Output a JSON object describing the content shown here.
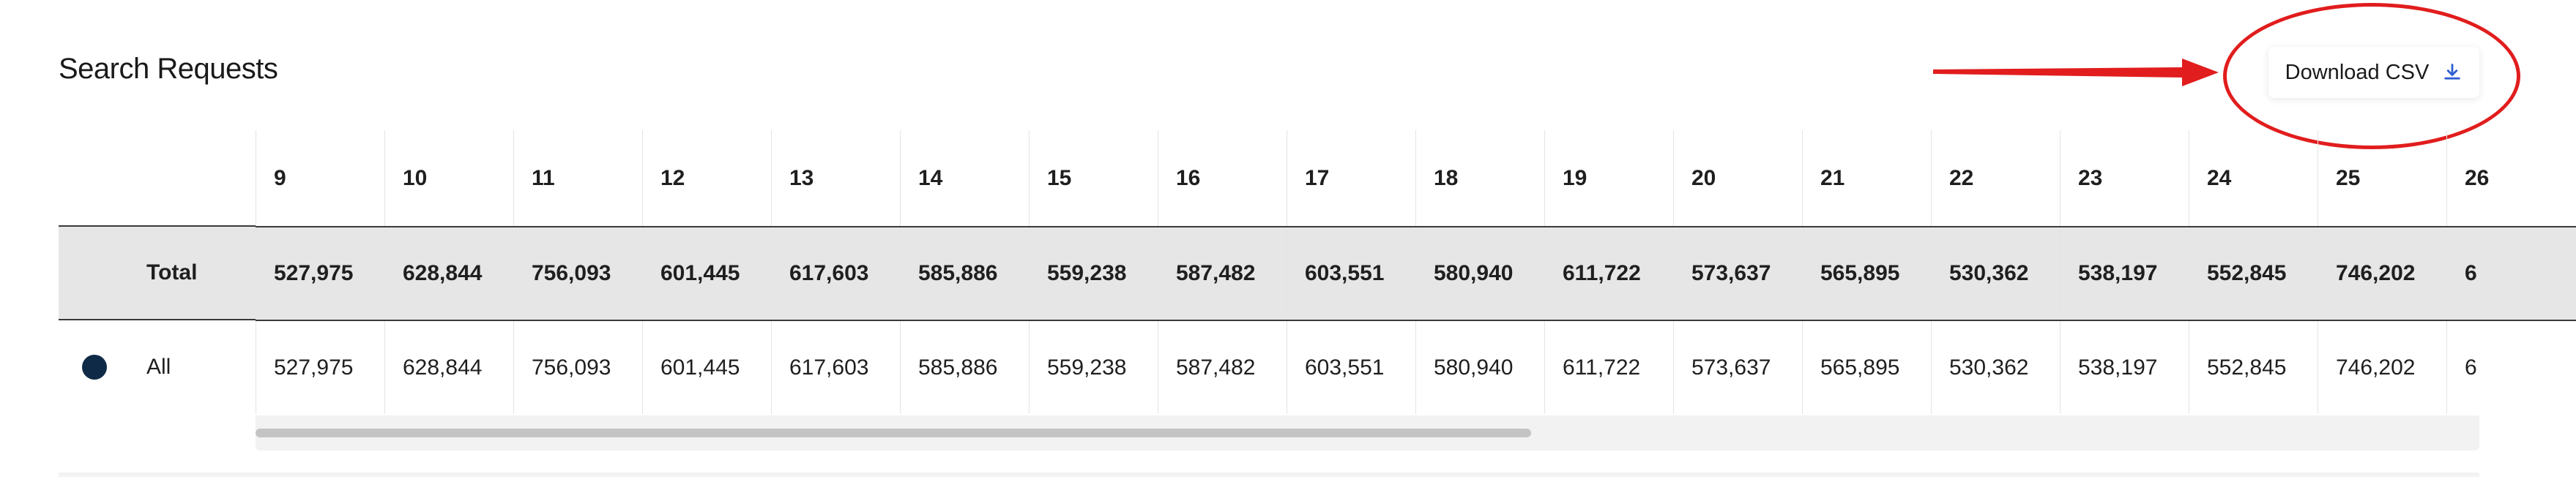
{
  "header": {
    "title": "Search Requests",
    "download_label": "Download CSV",
    "download_icon": "download-icon"
  },
  "annotation": {
    "arrow_color": "#e11d1d",
    "circle_color": "#e11d1d"
  },
  "table": {
    "columns": [
      "9",
      "10",
      "11",
      "12",
      "13",
      "14",
      "15",
      "16",
      "17",
      "18",
      "19",
      "20",
      "21",
      "22",
      "23",
      "24",
      "25",
      "26"
    ],
    "rows": [
      {
        "label": "Total",
        "values": [
          "527,975",
          "628,844",
          "756,093",
          "601,445",
          "617,603",
          "585,886",
          "559,238",
          "587,482",
          "603,551",
          "580,940",
          "611,722",
          "573,637",
          "565,895",
          "530,362",
          "538,197",
          "552,845",
          "746,202",
          "6"
        ]
      },
      {
        "label": "All",
        "color": "#0f2a47",
        "values": [
          "527,975",
          "628,844",
          "756,093",
          "601,445",
          "617,603",
          "585,886",
          "559,238",
          "587,482",
          "603,551",
          "580,940",
          "611,722",
          "573,637",
          "565,895",
          "530,362",
          "538,197",
          "552,845",
          "746,202",
          "6"
        ]
      }
    ]
  }
}
